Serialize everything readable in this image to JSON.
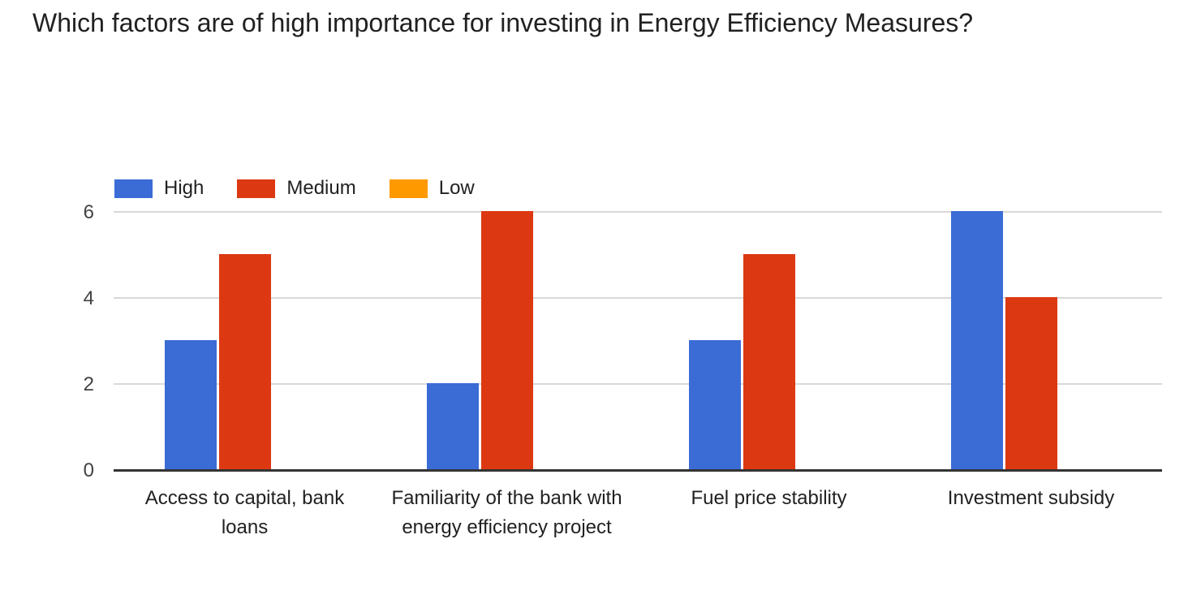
{
  "title": "Which factors are of high importance for investing in Energy Efficiency Measures?",
  "chart_data": {
    "type": "bar",
    "title": "Which factors are of high importance for investing in Energy Efficiency Measures?",
    "categories": [
      "Access to capital, bank loans",
      "Familiarity of the bank with energy efficiency project",
      "Fuel price stability",
      "Investment subsidy"
    ],
    "category_label_lines": [
      [
        "Access to capital, bank",
        "loans"
      ],
      [
        "Familiarity of the bank with",
        "energy efficiency project"
      ],
      [
        "Fuel price stability"
      ],
      [
        "Investment subsidy"
      ]
    ],
    "series": [
      {
        "name": "High",
        "color": "#3b6cd6",
        "values": [
          3,
          2,
          3,
          6
        ]
      },
      {
        "name": "Medium",
        "color": "#dc3912",
        "values": [
          5,
          6,
          5,
          4
        ]
      },
      {
        "name": "Low",
        "color": "#ff9900",
        "values": [
          0,
          0,
          0,
          0
        ]
      }
    ],
    "yticks": [
      0,
      2,
      4,
      6
    ],
    "ylim": [
      0,
      6
    ],
    "grid": true,
    "legend_position": "top-left",
    "xlabel": "",
    "ylabel": "",
    "colors": {
      "title_text": "#212121",
      "legend_text": "#212121",
      "tick_text": "#424242",
      "category_text": "#212121",
      "gridline": "#d9d9d9",
      "axis_line": "#333333",
      "background": "#ffffff"
    }
  }
}
